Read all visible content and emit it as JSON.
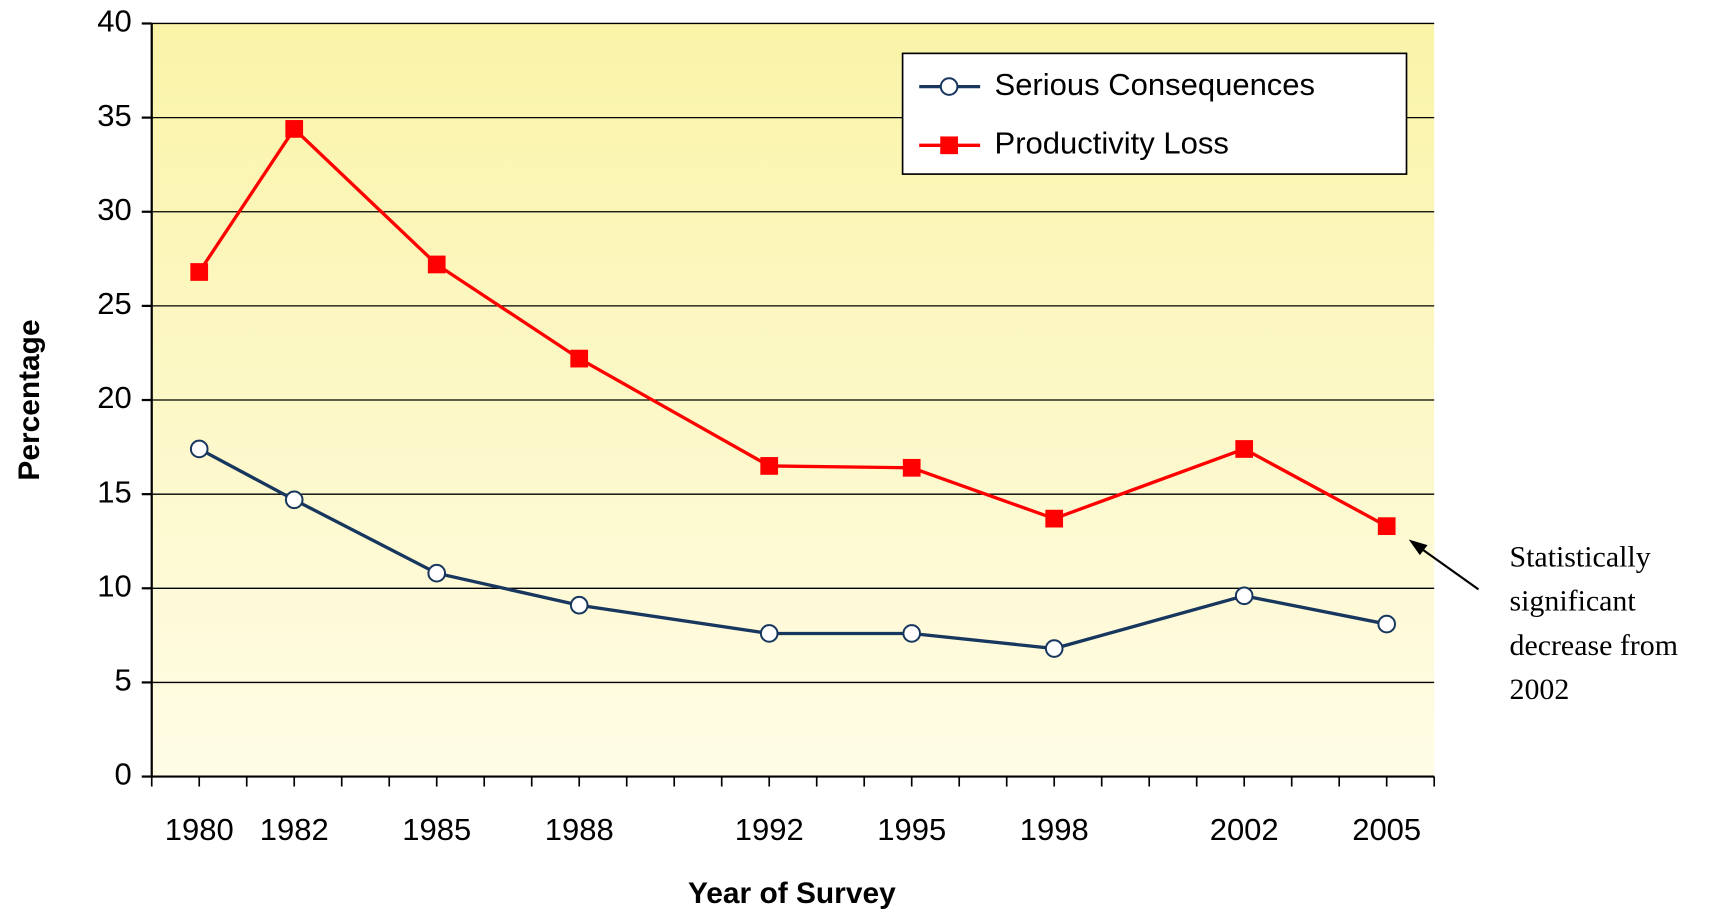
{
  "chart_data": {
    "type": "line",
    "xlabel": "Year of Survey",
    "ylabel": "Percentage",
    "x": [
      1980,
      1982,
      1985,
      1988,
      1992,
      1995,
      1998,
      2002,
      2005
    ],
    "series": [
      {
        "name": "Serious Consequences",
        "color": "#17375e",
        "marker": "circle",
        "values": [
          17.4,
          14.7,
          10.8,
          9.1,
          7.6,
          7.6,
          6.8,
          9.6,
          8.1
        ]
      },
      {
        "name": "Productivity Loss",
        "color": "#ff0000",
        "marker": "square",
        "values": [
          26.8,
          34.4,
          27.2,
          22.2,
          16.5,
          16.4,
          13.7,
          17.4,
          13.3
        ]
      }
    ],
    "xlim": [
      1979,
      2006
    ],
    "xticks": [
      1980,
      1982,
      1985,
      1988,
      1992,
      1995,
      1998,
      2002,
      2005
    ],
    "xminor_ticks": [
      1979,
      1980,
      1981,
      1982,
      1983,
      1984,
      1985,
      1986,
      1987,
      1988,
      1989,
      1990,
      1991,
      1992,
      1993,
      1994,
      1995,
      1996,
      1997,
      1998,
      1999,
      2000,
      2001,
      2002,
      2003,
      2004,
      2005,
      2006
    ],
    "ylim": [
      0,
      40
    ],
    "yticks": [
      0,
      5,
      10,
      15,
      20,
      25,
      30,
      35,
      40
    ],
    "grid": true,
    "legend": "upper right",
    "annotation": [
      "Statistically",
      "significant",
      "decrease from",
      "2002"
    ]
  }
}
